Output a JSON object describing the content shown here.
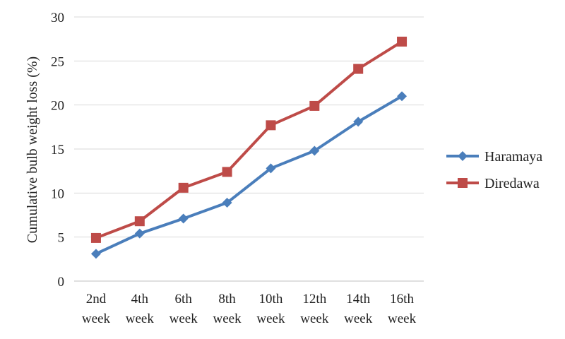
{
  "chart_data": {
    "type": "line",
    "categories": [
      [
        "2nd",
        "week"
      ],
      [
        "4th",
        "week"
      ],
      [
        "6th",
        "week"
      ],
      [
        "8th",
        "week"
      ],
      [
        "10th",
        "week"
      ],
      [
        "12th",
        "week"
      ],
      [
        "14th",
        "week"
      ],
      [
        "16th",
        "week"
      ]
    ],
    "series": [
      {
        "name": "Haramaya",
        "values": [
          3.1,
          5.4,
          7.1,
          8.9,
          12.8,
          14.8,
          18.1,
          21.0
        ],
        "color": "#4A7EBB",
        "marker": "diamond"
      },
      {
        "name": "Diredawa",
        "values": [
          4.9,
          6.8,
          10.6,
          12.4,
          17.7,
          19.9,
          24.1,
          27.2
        ],
        "color": "#BE4B48",
        "marker": "square"
      }
    ],
    "ylabel": "Cumulative bulb weight loss (%)",
    "xlabel": "",
    "ylim": [
      0,
      30
    ],
    "yticks": [
      "0",
      "5",
      "10",
      "15",
      "20",
      "25",
      "30"
    ],
    "ytick_values": [
      0,
      5,
      10,
      15,
      20,
      25,
      30
    ],
    "grid": true,
    "gridline_color": "#D9D9D9",
    "legend_position": "right"
  }
}
